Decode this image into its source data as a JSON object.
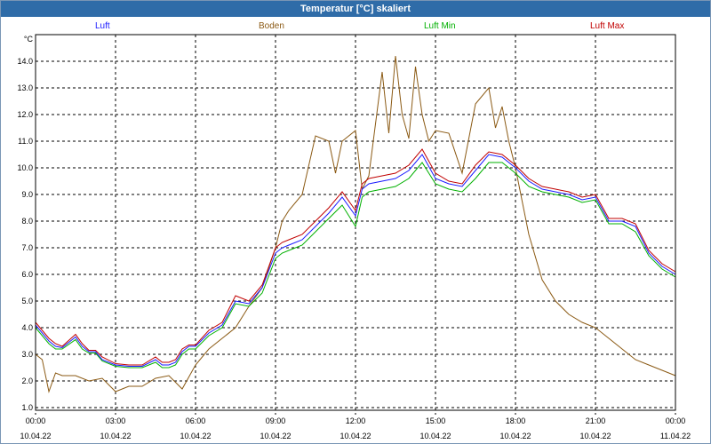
{
  "window": {
    "title": "Temperatur [°C] skaliert"
  },
  "chart_data": {
    "type": "line",
    "title": "Temperatur [°C] skaliert",
    "ylabel": "°C",
    "xlabel": "",
    "ylim": [
      0.9,
      15.0
    ],
    "xlim": [
      0,
      24
    ],
    "grid": true,
    "yticks": [
      1.0,
      2.0,
      3.0,
      4.0,
      5.0,
      6.0,
      7.0,
      8.0,
      9.0,
      10.0,
      11.0,
      12.0,
      13.0,
      14.0
    ],
    "ytick_labels": [
      "1.0",
      "2.0",
      "3.0",
      "4.0",
      "5.0",
      "6.0",
      "7.0",
      "8.0",
      "9.0",
      "10.0",
      "11.0",
      "12.0",
      "13.0",
      "14.0"
    ],
    "xticks": [
      {
        "x": 0,
        "time": "00:00",
        "date": "10.04.22"
      },
      {
        "x": 3,
        "time": "03:00",
        "date": "10.04.22"
      },
      {
        "x": 6,
        "time": "06:00",
        "date": "10.04.22"
      },
      {
        "x": 9,
        "time": "09:00",
        "date": "10.04.22"
      },
      {
        "x": 12,
        "time": "12:00",
        "date": "10.04.22"
      },
      {
        "x": 15,
        "time": "15:00",
        "date": "10.04.22"
      },
      {
        "x": 18,
        "time": "18:00",
        "date": "10.04.22"
      },
      {
        "x": 21,
        "time": "21:00",
        "date": "10.04.22"
      },
      {
        "x": 24,
        "time": "00:00",
        "date": "11.04.22"
      }
    ],
    "series": [
      {
        "name": "Luft",
        "color": "#1a1aff",
        "x": [
          0,
          0.5,
          0.75,
          1,
          1.5,
          1.75,
          2,
          2.25,
          2.5,
          3,
          3.5,
          4,
          4.5,
          4.75,
          5,
          5.25,
          5.5,
          5.75,
          6,
          6.5,
          7,
          7.5,
          8,
          8.5,
          9,
          9.25,
          9.5,
          10,
          10.5,
          11,
          11.5,
          12,
          12.25,
          12.5,
          13,
          13.5,
          14,
          14.5,
          15,
          15.5,
          16,
          16.5,
          17,
          17.5,
          18,
          18.5,
          19,
          19.5,
          20,
          20.5,
          21,
          21.5,
          22,
          22.5,
          23,
          23.5,
          24
        ],
        "values": [
          4.1,
          3.5,
          3.3,
          3.25,
          3.65,
          3.3,
          3.1,
          3.1,
          2.8,
          2.6,
          2.55,
          2.55,
          2.8,
          2.6,
          2.6,
          2.7,
          3.1,
          3.3,
          3.3,
          3.8,
          4.1,
          5.0,
          4.9,
          5.5,
          6.8,
          7.0,
          7.1,
          7.3,
          7.8,
          8.3,
          8.9,
          8.2,
          9.2,
          9.4,
          9.5,
          9.6,
          9.9,
          10.5,
          9.6,
          9.4,
          9.3,
          9.9,
          10.5,
          10.4,
          10.0,
          9.5,
          9.2,
          9.1,
          9.0,
          8.8,
          8.9,
          8.0,
          8.0,
          7.8,
          6.8,
          6.3,
          6.0
        ]
      },
      {
        "name": "Boden",
        "color": "#8b5a14",
        "x": [
          0,
          0.25,
          0.5,
          0.75,
          1,
          1.5,
          2,
          2.5,
          3,
          3.5,
          4,
          4.5,
          5,
          5.5,
          6,
          6.5,
          7,
          7.5,
          8,
          8.5,
          9,
          9.25,
          9.5,
          10,
          10.5,
          11,
          11.25,
          11.5,
          12,
          12.25,
          12.5,
          13,
          13.25,
          13.5,
          13.75,
          14,
          14.25,
          14.5,
          14.75,
          15,
          15.5,
          16,
          16.5,
          17,
          17.25,
          17.5,
          17.75,
          18,
          18.5,
          19,
          19.5,
          20,
          20.5,
          21,
          21.5,
          22,
          22.5,
          23,
          23.5,
          24
        ],
        "values": [
          3.0,
          2.8,
          1.6,
          2.3,
          2.2,
          2.2,
          2.0,
          2.1,
          1.6,
          1.8,
          1.8,
          2.1,
          2.2,
          1.7,
          2.6,
          3.2,
          3.6,
          4.0,
          4.8,
          5.5,
          7.0,
          8.0,
          8.4,
          9.0,
          11.2,
          11.0,
          9.8,
          11.0,
          11.4,
          9.2,
          9.7,
          13.6,
          11.3,
          14.2,
          12.0,
          11.1,
          13.8,
          12.0,
          11.0,
          11.4,
          11.3,
          9.8,
          12.4,
          13.0,
          11.5,
          12.3,
          11.0,
          10.0,
          7.5,
          5.8,
          5.0,
          4.5,
          4.2,
          4.0,
          3.6,
          3.2,
          2.8,
          2.6,
          2.4,
          2.2
        ]
      },
      {
        "name": "Luft Min",
        "color": "#00b000",
        "x": [
          0,
          0.5,
          0.75,
          1,
          1.5,
          1.75,
          2,
          2.25,
          2.5,
          3,
          3.5,
          4,
          4.5,
          4.75,
          5,
          5.25,
          5.5,
          5.75,
          6,
          6.5,
          7,
          7.5,
          8,
          8.5,
          9,
          9.25,
          9.5,
          10,
          10.5,
          11,
          11.5,
          12,
          12.25,
          12.5,
          13,
          13.5,
          14,
          14.5,
          15,
          15.5,
          16,
          16.5,
          17,
          17.5,
          18,
          18.5,
          19,
          19.5,
          20,
          20.5,
          21,
          21.5,
          22,
          22.5,
          23,
          23.5,
          24
        ],
        "values": [
          4.0,
          3.4,
          3.2,
          3.2,
          3.55,
          3.2,
          3.05,
          3.05,
          2.75,
          2.55,
          2.5,
          2.5,
          2.7,
          2.5,
          2.5,
          2.6,
          3.0,
          3.2,
          3.2,
          3.7,
          4.0,
          4.9,
          4.8,
          5.3,
          6.6,
          6.8,
          6.9,
          7.1,
          7.6,
          8.1,
          8.6,
          7.8,
          8.9,
          9.1,
          9.2,
          9.3,
          9.6,
          10.2,
          9.4,
          9.2,
          9.1,
          9.6,
          10.2,
          10.2,
          9.8,
          9.3,
          9.1,
          9.0,
          8.9,
          8.7,
          8.8,
          7.9,
          7.9,
          7.6,
          6.7,
          6.2,
          5.9
        ]
      },
      {
        "name": "Luft Max",
        "color": "#c00000",
        "x": [
          0,
          0.5,
          0.75,
          1,
          1.5,
          1.75,
          2,
          2.25,
          2.5,
          3,
          3.5,
          4,
          4.5,
          4.75,
          5,
          5.25,
          5.5,
          5.75,
          6,
          6.5,
          7,
          7.5,
          8,
          8.5,
          9,
          9.25,
          9.5,
          10,
          10.5,
          11,
          11.5,
          12,
          12.25,
          12.5,
          13,
          13.5,
          14,
          14.5,
          15,
          15.5,
          16,
          16.5,
          17,
          17.5,
          18,
          18.5,
          19,
          19.5,
          20,
          20.5,
          21,
          21.5,
          22,
          22.5,
          23,
          23.5,
          24
        ],
        "values": [
          4.2,
          3.6,
          3.4,
          3.3,
          3.75,
          3.4,
          3.15,
          3.15,
          2.9,
          2.65,
          2.6,
          2.6,
          2.9,
          2.7,
          2.7,
          2.8,
          3.2,
          3.35,
          3.35,
          3.9,
          4.2,
          5.2,
          5.0,
          5.6,
          7.0,
          7.2,
          7.3,
          7.5,
          8.0,
          8.5,
          9.1,
          8.4,
          9.4,
          9.6,
          9.7,
          9.8,
          10.1,
          10.7,
          9.8,
          9.5,
          9.4,
          10.1,
          10.6,
          10.5,
          10.1,
          9.6,
          9.3,
          9.2,
          9.1,
          8.9,
          9.0,
          8.1,
          8.1,
          7.9,
          6.9,
          6.4,
          6.1
        ]
      }
    ]
  }
}
